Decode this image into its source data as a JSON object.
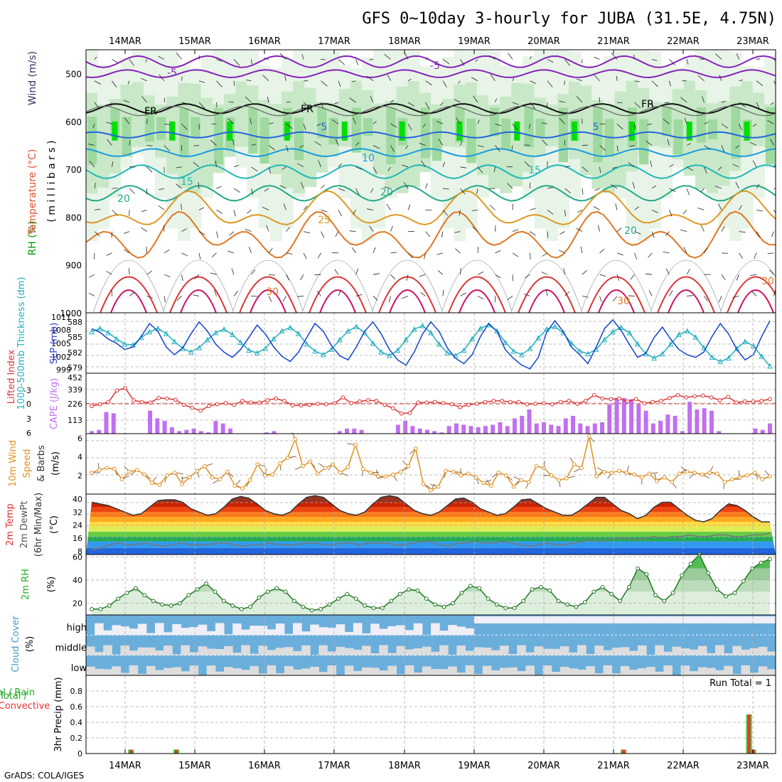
{
  "title": "GFS 0~10day 3-hourly for JUBA (31.5E, 4.75N)",
  "credit": "GrADS: COLA/IGES",
  "dates": [
    "14MAR",
    "15MAR",
    "16MAR",
    "17MAR",
    "18MAR",
    "19MAR",
    "20MAR",
    "21MAR",
    "22MAR",
    "23MAR"
  ],
  "colors": {
    "grid": "#aaaaaa",
    "rh_light": "#e8f4e8",
    "rh_mid": "#9fd99f",
    "rh_strong": "#00e000",
    "cloud_blue": "#6aaedc",
    "cloud_gray": "#dddddd"
  },
  "chart_data": [
    {
      "id": "upper-air",
      "type": "contour",
      "ylabel_parts": [
        "RH (%)",
        "Temperature (°C)",
        "Wind (m/s)"
      ],
      "ylabel_unit": "( m i l l i b a r s )",
      "yticks": [
        500,
        600,
        700,
        800,
        900,
        1000
      ],
      "ylim": [
        1000,
        450
      ],
      "contour_labels": [
        "-5",
        "-5",
        "5",
        "5",
        "10",
        "15",
        "15",
        "20",
        "20",
        "20",
        "25",
        "30",
        "30",
        "30",
        "FR",
        "FR",
        "FR"
      ]
    },
    {
      "id": "thickness-slp",
      "type": "line",
      "ylabel_left": "1000-500mb Thickness (dm)",
      "ylabel_right": "SLP (mb)",
      "left_ticks": [
        "588",
        "585",
        "582",
        "579"
      ],
      "right_ticks": [
        "1011",
        "1008",
        "1005",
        "1002",
        "999"
      ],
      "series": [
        {
          "name": "Thickness",
          "color": "#1144cc",
          "values": [
            586.5,
            585.8,
            584.5,
            583.7,
            582.5,
            583.0,
            585.0,
            587.5,
            586.0,
            583.0,
            581.5,
            582.8,
            585.5,
            587.8,
            586.0,
            583.5,
            582.0,
            581.0,
            582.5,
            584.8,
            587.2,
            585.5,
            583.0,
            581.2,
            580.2,
            582.0,
            584.8,
            587.5,
            586.0,
            583.2,
            581.3,
            580.5,
            583.0,
            586.0,
            587.8,
            585.5,
            582.5,
            580.5,
            579.5,
            582.0,
            585.5,
            587.8,
            586.0,
            582.8,
            580.8,
            579.8,
            581.5,
            585.0,
            587.5,
            586.0,
            582.5,
            580.8,
            579.5,
            578.8,
            581.0,
            585.8,
            588.0,
            586.0,
            583.0,
            581.5,
            579.8,
            583.0,
            586.5,
            588.2,
            586.2,
            583.5,
            581.0,
            581.8,
            584.8,
            586.8,
            584.5,
            582.5,
            581.5,
            581.0,
            582.0,
            585.0,
            587.5,
            585.5,
            582.5,
            580.5,
            581.5,
            585.0,
            588.0
          ]
        },
        {
          "name": "SLP",
          "color": "#22b0c0",
          "values": [
            1007.8,
            1008.6,
            1007.6,
            1006.2,
            1005.0,
            1004.8,
            1006.5,
            1007.8,
            1008.6,
            1007.4,
            1005.6,
            1004.0,
            1003.2,
            1004.2,
            1006.0,
            1007.6,
            1008.4,
            1007.2,
            1005.4,
            1003.6,
            1003.0,
            1004.0,
            1006.2,
            1008.0,
            1008.8,
            1007.4,
            1005.0,
            1003.4,
            1002.6,
            1003.8,
            1006.0,
            1008.0,
            1009.0,
            1007.6,
            1005.2,
            1003.2,
            1002.4,
            1003.6,
            1006.0,
            1008.4,
            1009.2,
            1007.6,
            1005.0,
            1003.0,
            1002.4,
            1003.6,
            1006.2,
            1008.6,
            1009.4,
            1008.0,
            1005.4,
            1003.4,
            1002.6,
            1004.0,
            1006.4,
            1008.4,
            1009.0,
            1007.6,
            1005.2,
            1003.4,
            1002.8,
            1003.8,
            1006.0,
            1007.8,
            1008.8,
            1007.6,
            1005.0,
            1002.8,
            1001.8,
            1002.8,
            1005.0,
            1007.2,
            1008.0,
            1006.6,
            1004.2,
            1002.0,
            1001.0,
            1001.8,
            1004.0,
            1005.6,
            1004.6,
            1002.2,
            1000.0
          ]
        }
      ]
    },
    {
      "id": "stability",
      "type": "bar+line",
      "ylabel_left": "Lifted Index",
      "ylabel_right": "CAPE (J/kg)",
      "left_ticks": [
        "-3",
        "0",
        "3",
        "6"
      ],
      "right_ticks": [
        "452",
        "339",
        "226",
        "113"
      ],
      "series": [
        {
          "name": "CAPE",
          "color": "#c070f0",
          "values": [
            20,
            30,
            170,
            160,
            0,
            0,
            0,
            0,
            180,
            120,
            100,
            50,
            20,
            30,
            40,
            20,
            10,
            100,
            80,
            40,
            0,
            0,
            0,
            0,
            10,
            20,
            0,
            0,
            0,
            0,
            0,
            0,
            0,
            0,
            20,
            40,
            40,
            30,
            0,
            0,
            0,
            0,
            70,
            100,
            60,
            40,
            30,
            20,
            10,
            60,
            80,
            70,
            60,
            50,
            60,
            70,
            90,
            60,
            120,
            140,
            190,
            80,
            90,
            70,
            60,
            120,
            140,
            80,
            60,
            80,
            90,
            230,
            280,
            280,
            270,
            230,
            180,
            80,
            100,
            150,
            140,
            20,
            250,
            190,
            200,
            180,
            20,
            0,
            0,
            0,
            0,
            40,
            30,
            80
          ]
        },
        {
          "name": "Lifted Index",
          "color": "#dd3333",
          "values": [
            1.2,
            0.9,
            0.5,
            -1.5,
            -1.9,
            0.2,
            0.5,
            0.6,
            -0.2,
            -0.1,
            0.1,
            1.0,
            1.5,
            2.0,
            1.2,
            0.9,
            0.7,
            1.0,
            0.3,
            0.6,
            0.6,
            0.2,
            -0.1,
            0.3,
            1.1,
            1.1,
            1.0,
            0.8,
            0.9,
            0.7,
            -0.3,
            0.7,
            0.4,
            0.2,
            0.3,
            1.0,
            1.6,
            2.5,
            2.4,
            0.6,
            0.6,
            0.5,
            0.7,
            0.9,
            1.4,
            1.0,
            0.8,
            0.5,
            0.3,
            0.3,
            0.5,
            0.5,
            0.9,
            0.8,
            0.7,
            0.9,
            0.5,
            0.3,
            0.8,
            0.3,
            -0.7,
            -0.1,
            0.0,
            -0.1,
            0.4,
            0.0,
            0.7,
            0.5,
            0.3,
            -0.2,
            -0.7,
            -0.3,
            -0.5,
            -0.6,
            -0.3,
            0.2,
            -0.4,
            0.6,
            0.4,
            0.4,
            0.3,
            0.0
          ]
        }
      ]
    },
    {
      "id": "wind10m",
      "type": "line",
      "ylabel": "10m Wind Speed & Barbs (m/s)",
      "yticks": [
        2,
        4,
        6
      ],
      "ylim": [
        0,
        6.5
      ],
      "series": [
        {
          "name": "Speed",
          "color": "#e09020",
          "values": [
            2.3,
            2.6,
            2.8,
            2.7,
            1.6,
            2.4,
            2.6,
            2.1,
            1.2,
            1.0,
            2.0,
            2.3,
            1.1,
            1.8,
            2.5,
            3.0,
            1.8,
            1.6,
            2.4,
            0.9,
            0.6,
            1.5,
            3.2,
            2.0,
            2.1,
            3.3,
            3.9,
            5.9,
            3.0,
            3.5,
            2.2,
            2.8,
            3.2,
            2.3,
            2.9,
            5.3,
            2.7,
            2.3,
            1.9,
            1.9,
            2.1,
            2.4,
            3.0,
            4.9,
            1.1,
            0.4,
            0.8,
            2.5,
            2.4,
            2.0,
            2.2,
            1.8,
            1.2,
            0.9,
            2.3,
            2.0,
            0.8,
            1.5,
            1.3,
            3.0,
            2.8,
            2.0,
            1.5,
            1.7,
            3.2,
            2.8,
            6.2,
            1.9,
            2.4,
            2.3,
            2.5,
            2.3,
            2.1,
            1.8,
            2.2,
            1.4,
            1.8,
            1.3,
            2.2,
            2.4,
            2.3,
            2.1,
            2.3,
            2.2,
            1.3,
            1.6,
            1.8,
            2.0,
            2.3,
            1.6,
            1.9
          ]
        }
      ]
    },
    {
      "id": "temp2m",
      "type": "area",
      "ylabel": "2m Temp 2m DewPt (6hr Min/Max) (°C)",
      "yticks": [
        8,
        16,
        24,
        32,
        40
      ],
      "ylim": [
        6,
        43
      ],
      "series": [
        {
          "name": "2m Temp",
          "color": "#333333",
          "values": [
            38,
            37,
            36,
            34,
            32,
            30,
            31,
            35,
            39,
            39.5,
            39.5,
            38,
            34,
            32,
            30,
            31,
            35,
            40,
            41.5,
            40.5,
            37,
            33,
            31,
            30,
            32,
            37,
            41,
            42,
            41,
            37,
            33,
            31,
            30,
            32,
            37,
            41,
            42,
            41,
            37,
            33,
            31,
            30,
            32,
            36,
            40,
            40.5,
            38,
            34,
            32,
            30,
            31,
            35,
            39.5,
            40,
            37,
            34,
            32,
            30,
            30,
            33,
            37,
            41,
            41,
            37,
            33,
            31,
            28,
            30,
            35,
            38,
            38,
            34,
            30,
            27,
            26,
            28,
            33,
            37,
            36,
            33,
            29,
            26,
            26
          ]
        },
        {
          "name": "2m DewPt",
          "color": "#777777",
          "values": [
            9,
            10,
            12,
            13,
            12,
            12,
            13,
            12,
            11,
            12,
            13,
            12,
            12,
            12,
            13,
            13,
            12,
            11,
            12,
            12,
            13,
            12,
            12,
            12,
            13,
            13,
            12,
            12,
            13,
            13,
            12,
            13,
            13,
            13,
            12,
            12,
            13,
            14,
            14,
            12,
            11,
            13,
            13,
            14,
            13,
            13,
            14,
            13,
            12,
            11,
            12,
            13,
            12,
            12,
            13,
            14,
            15,
            14,
            15,
            16,
            16,
            15,
            16,
            17,
            16,
            17,
            17,
            18,
            17,
            17,
            18,
            18,
            17,
            17,
            18,
            18,
            19
          ]
        }
      ]
    },
    {
      "id": "rh2m",
      "type": "area",
      "ylabel": "2m RH (%)",
      "yticks": [
        20,
        40,
        60
      ],
      "ylim": [
        10,
        62
      ],
      "series": [
        {
          "name": "2m RH",
          "values": [
            15,
            15,
            18,
            24,
            29,
            33,
            27,
            22,
            19,
            18,
            20,
            27,
            32,
            37,
            30,
            22,
            18,
            15,
            17,
            25,
            30,
            33,
            30,
            22,
            17,
            14,
            15,
            19,
            24,
            28,
            24,
            18,
            16,
            16,
            22,
            28,
            32,
            31,
            24,
            19,
            17,
            20,
            29,
            35,
            33,
            24,
            19,
            16,
            16,
            22,
            32,
            34,
            31,
            22,
            19,
            17,
            21,
            30,
            34,
            28,
            22,
            34,
            50,
            45,
            27,
            22,
            29,
            44,
            54,
            62,
            46,
            32,
            26,
            29,
            39,
            50,
            55,
            58
          ]
        }
      ]
    },
    {
      "id": "cloud",
      "type": "heatmap",
      "ylabel": "Cloud Cover (%)",
      "rows": [
        "high",
        "middle",
        "low"
      ]
    },
    {
      "id": "precip",
      "type": "bar",
      "ylabel_left": "Total / Rain Convective",
      "ylabel": "3hr Precip (mm)",
      "annotation": "Run Total = 1",
      "yticks": [
        "0",
        "0.2",
        "0.4",
        "0.6",
        "0.8"
      ],
      "ylim": [
        0,
        1
      ],
      "bars": [
        {
          "date_index": 0.35,
          "total": 0.05,
          "convective": 0.05
        },
        {
          "date_index": 1.0,
          "total": 0.05,
          "convective": 0.05
        },
        {
          "date_index": 7.42,
          "total": 0.05,
          "convective": 0.05
        },
        {
          "date_index": 9.22,
          "total": 0.5,
          "convective": 0.5
        },
        {
          "date_index": 9.28,
          "total": 0.05,
          "convective": 0.05
        }
      ]
    }
  ]
}
